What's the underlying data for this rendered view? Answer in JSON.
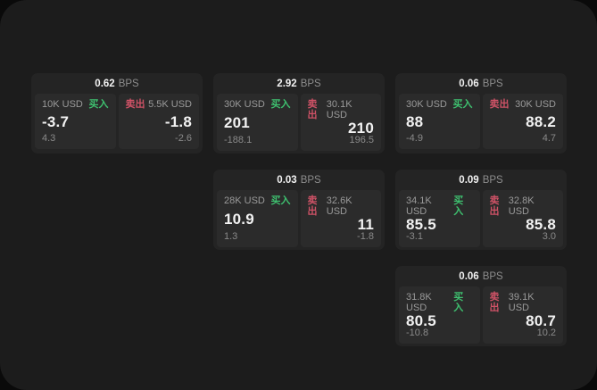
{
  "colors": {
    "panel_bg": "#1c1c1c",
    "card_bg": "#242424",
    "tile_bg": "#2b2b2b",
    "buy": "#3ec06f",
    "sell": "#ce5266",
    "label": "#9a9a9a",
    "value": "#f2f2f2",
    "sub": "#8a8a8a",
    "bps": "#8d8d8d"
  },
  "labels": {
    "buy": "买入",
    "sell": "卖出",
    "bps": "BPS"
  },
  "cards": [
    {
      "bps": "0.62",
      "buy": {
        "amount": "10K USD",
        "value": "-3.7",
        "sub": "4.3"
      },
      "sell": {
        "amount": "5.5K USD",
        "value": "-1.8",
        "sub": "-2.6"
      }
    },
    {
      "bps": "2.92",
      "buy": {
        "amount": "30K USD",
        "value": "201",
        "sub": "-188.1"
      },
      "sell": {
        "amount": "30.1K USD",
        "value": "210",
        "sub": "196.5"
      }
    },
    {
      "bps": "0.06",
      "buy": {
        "amount": "30K USD",
        "value": "88",
        "sub": "-4.9"
      },
      "sell": {
        "amount": "30K USD",
        "value": "88.2",
        "sub": "4.7"
      }
    },
    {
      "bps": "0.03",
      "buy": {
        "amount": "28K USD",
        "value": "10.9",
        "sub": "1.3"
      },
      "sell": {
        "amount": "32.6K USD",
        "value": "11",
        "sub": "-1.8"
      }
    },
    {
      "bps": "0.09",
      "buy": {
        "amount": "34.1K USD",
        "value": "85.5",
        "sub": "-3.1"
      },
      "sell": {
        "amount": "32.8K USD",
        "value": "85.8",
        "sub": "3.0"
      }
    },
    {
      "bps": "0.06",
      "buy": {
        "amount": "31.8K USD",
        "value": "80.5",
        "sub": "-10.8"
      },
      "sell": {
        "amount": "39.1K USD",
        "value": "80.7",
        "sub": "10.2"
      }
    }
  ]
}
